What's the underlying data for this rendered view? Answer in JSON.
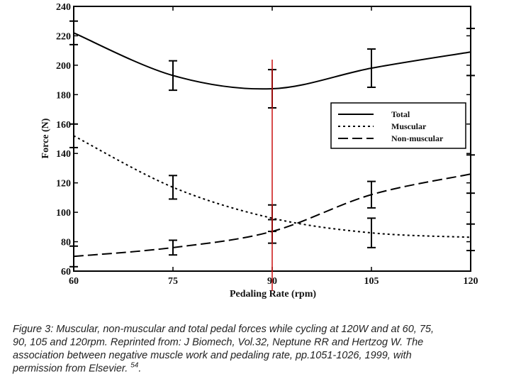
{
  "chart_data": {
    "type": "line",
    "x_label": "Pedaling Rate (rpm)",
    "y_label": "Force (N)",
    "x": [
      60,
      75,
      90,
      105,
      120
    ],
    "xlim": [
      60,
      120
    ],
    "xticks": [
      60,
      75,
      90,
      105,
      120
    ],
    "ylim": [
      60,
      240
    ],
    "yticks": [
      60,
      80,
      100,
      120,
      140,
      160,
      180,
      200,
      220,
      240
    ],
    "series": [
      {
        "name": "Total",
        "color": "#000000",
        "dash": "solid",
        "values": [
          222,
          193,
          184,
          198,
          209
        ],
        "errors": [
          8,
          10,
          13,
          13,
          16
        ]
      },
      {
        "name": "Muscular",
        "color": "#000000",
        "dash": "dotted",
        "values": [
          152,
          117,
          96,
          86,
          83
        ],
        "errors": [
          8,
          8,
          9,
          10,
          9
        ]
      },
      {
        "name": "Non-muscular",
        "color": "#000000",
        "dash": "dashed",
        "values": [
          70,
          76,
          87,
          112,
          126
        ],
        "errors": [
          7,
          5,
          8,
          9,
          13
        ]
      }
    ],
    "marker_line": {
      "x": 90,
      "color": "#cc1111"
    },
    "legend": "upper right",
    "caption_lines": [
      "Figure 3: Muscular, non-muscular and total pedal forces while cycling at 120W and at 60, 75,",
      "90, 105 and 120rpm. Reprinted from: J Biomech, Vol.32, Neptune RR and Hertzog W. The",
      "association between negative muscle work and pedaling rate, pp.1051-1026, 1999, with",
      "permission from Elsevier."
    ],
    "caption_ref": "54",
    "caption_end": "."
  }
}
